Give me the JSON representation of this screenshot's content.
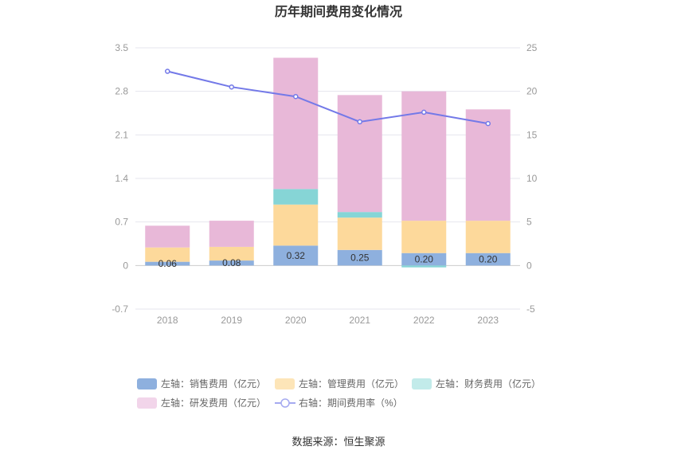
{
  "chart_data": {
    "type": "bar",
    "title": "历年期间费用变化情况",
    "categories": [
      "2018",
      "2019",
      "2020",
      "2021",
      "2022",
      "2023"
    ],
    "left_axis": {
      "ylim": [
        -0.7,
        3.5
      ],
      "ticks": [
        "3.5",
        "2.8",
        "2.1",
        "1.4",
        "0.7",
        "0",
        "-0.7"
      ],
      "tick_values": [
        3.5,
        2.8,
        2.1,
        1.4,
        0.7,
        0,
        -0.7
      ]
    },
    "right_axis": {
      "ylim": [
        -5,
        25
      ],
      "ticks": [
        "25",
        "20",
        "15",
        "10",
        "5",
        "0",
        "-5"
      ],
      "tick_values": [
        25,
        20,
        15,
        10,
        5,
        0,
        -5
      ]
    },
    "series": [
      {
        "name": "左轴：销售费用（亿元）",
        "axis": "left",
        "kind": "bar",
        "color": "#8eb0de",
        "values": [
          0.06,
          0.08,
          0.32,
          0.25,
          0.2,
          0.2
        ],
        "labels": [
          "0.06",
          "0.08",
          "0.32",
          "0.25",
          "0.20",
          "0.20"
        ]
      },
      {
        "name": "左轴：管理费用（亿元）",
        "axis": "left",
        "kind": "bar",
        "color": "#fdd99b",
        "values": [
          0.23,
          0.22,
          0.66,
          0.52,
          0.52,
          0.52
        ]
      },
      {
        "name": "左轴：财务费用（亿元）",
        "axis": "left",
        "kind": "bar",
        "color": "#86d5d6",
        "values": [
          0.0,
          0.0,
          0.25,
          0.09,
          -0.03,
          0.0
        ]
      },
      {
        "name": "左轴：研发费用（亿元）",
        "axis": "left",
        "kind": "bar",
        "color": "#e8b8d8",
        "values": [
          0.35,
          0.42,
          2.11,
          1.88,
          2.08,
          1.79
        ]
      },
      {
        "name": "右轴：期间费用率（%）",
        "axis": "right",
        "kind": "line",
        "color": "#7379e8",
        "values": [
          22.3,
          20.5,
          19.4,
          16.5,
          17.6,
          16.3
        ]
      }
    ],
    "legend_colors": [
      "#8eb0de",
      "#fde5b8",
      "#c2ebea",
      "#f2d5ea",
      "#a5aaf0"
    ],
    "legend_position": "bottom",
    "grid": true
  },
  "source": "数据来源：恒生聚源"
}
